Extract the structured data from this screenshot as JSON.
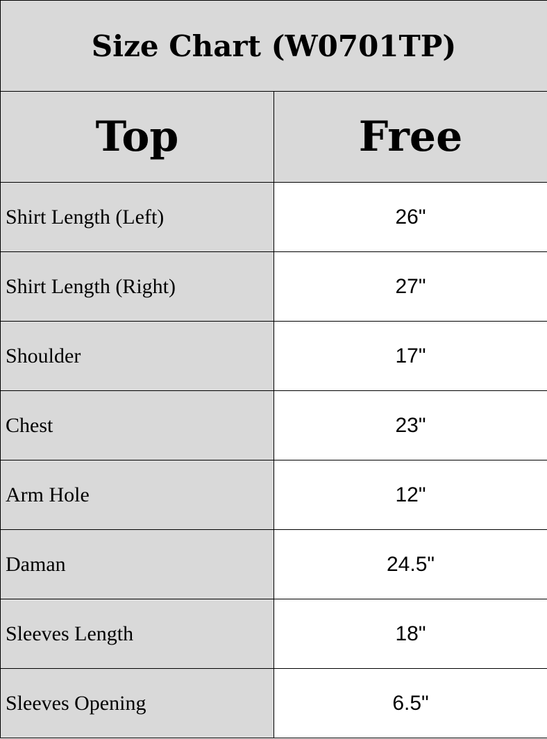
{
  "title": "Size Chart (W0701TP)",
  "header": {
    "left": "Top",
    "right": "Free"
  },
  "rows": [
    {
      "label": "Shirt Length (Left)",
      "value": "26\""
    },
    {
      "label": "Shirt Length (Right)",
      "value": "27\""
    },
    {
      "label": "Shoulder",
      "value": "17\""
    },
    {
      "label": "Chest",
      "value": "23\""
    },
    {
      "label": "Arm Hole",
      "value": "12\""
    },
    {
      "label": "Daman",
      "value": "24.5\""
    },
    {
      "label": "Sleeves Length",
      "value": "18\""
    },
    {
      "label": "Sleeves Opening",
      "value": "6.5\""
    }
  ],
  "colors": {
    "header_bg": "#d9d9d9",
    "label_bg": "#d9d9d9",
    "value_bg": "#ffffff",
    "border": "#000000"
  }
}
